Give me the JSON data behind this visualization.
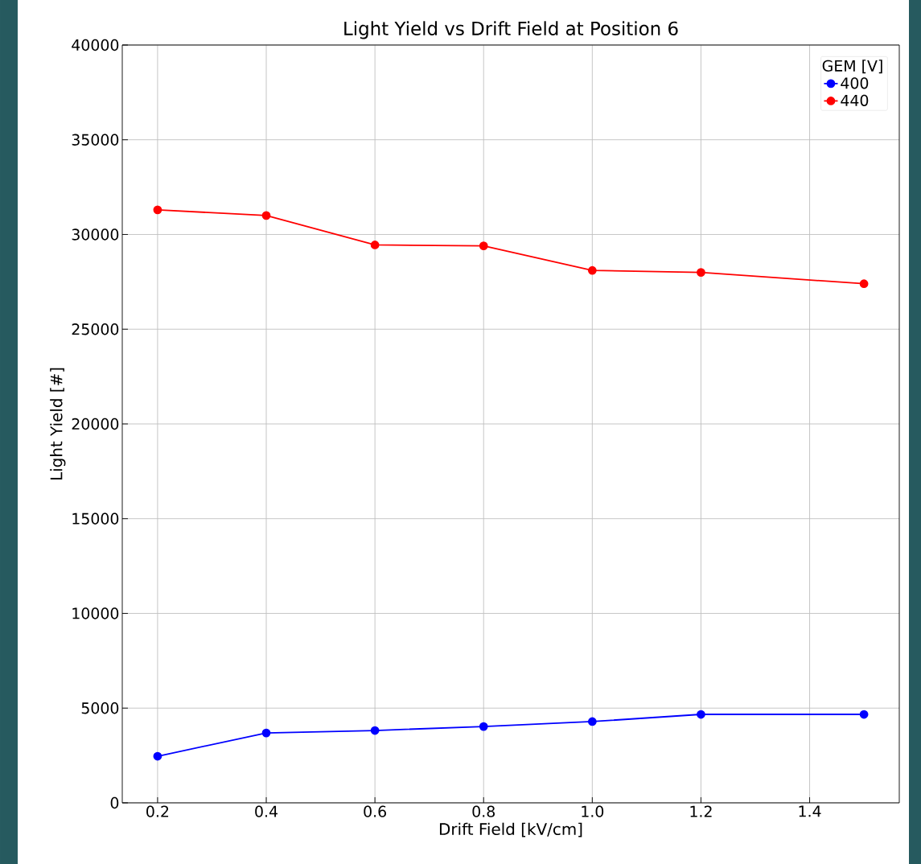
{
  "chart_data": {
    "type": "line",
    "title": "Light Yield vs Drift Field at Position 6",
    "xlabel": "Drift Field [kV/cm]",
    "ylabel": "Light Yield [#]",
    "legend_title": "GEM [V]",
    "x": [
      0.2,
      0.4,
      0.6,
      0.8,
      1.0,
      1.2,
      1.5
    ],
    "series": [
      {
        "name": "400",
        "color": "#0000ff",
        "values": [
          2460,
          3690,
          3820,
          4030,
          4290,
          4670,
          4670
        ]
      },
      {
        "name": "440",
        "color": "#ff0000",
        "values": [
          31300,
          31000,
          29450,
          29400,
          28100,
          28000,
          27400
        ]
      }
    ],
    "xlim": [
      0.135,
      1.565
    ],
    "ylim": [
      0,
      40000
    ],
    "xticks": [
      0.2,
      0.4,
      0.6,
      0.8,
      {
        "value": 1,
        "label": "1.0"
      },
      1.2,
      1.4
    ],
    "yticks": [
      0,
      5000,
      10000,
      15000,
      20000,
      25000,
      30000,
      35000,
      40000
    ],
    "grid": true,
    "legend": "top right",
    "marker": "circle",
    "line_style": "solid"
  }
}
